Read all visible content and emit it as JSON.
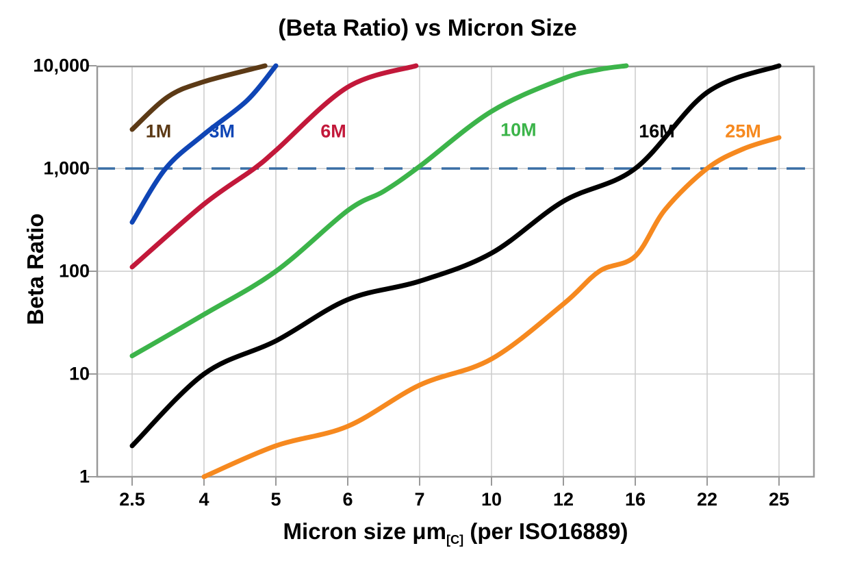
{
  "title": "(Beta Ratio) vs Micron Size",
  "y_axis": {
    "label": "Beta Ratio",
    "ticks": [
      "10,000",
      "1,000",
      "100",
      "10",
      "1"
    ]
  },
  "x_axis": {
    "label_main": "Micron size μm",
    "label_sub": "[C]",
    "label_suffix": " (per ISO16889)",
    "ticks": [
      "2.5",
      "4",
      "5",
      "6",
      "7",
      "10",
      "12",
      "16",
      "22",
      "25"
    ]
  },
  "colors": {
    "background": "#FFFFFF",
    "grid": "#CCCCCC",
    "axis_border": "#999999",
    "reference_dash": "#3A6EA5"
  },
  "chart_data": {
    "type": "line",
    "title": "(Beta Ratio) vs Micron Size",
    "xlabel": "Micron size μm[C] (per ISO16889)",
    "ylabel": "Beta Ratio",
    "x_scale": "categorical-equal-spacing",
    "x_ticks": [
      2.5,
      4,
      5,
      6,
      7,
      10,
      12,
      16,
      22,
      25
    ],
    "y_scale": "log",
    "ylim": [
      1,
      10000
    ],
    "y_ticks": [
      1,
      10,
      100,
      1000,
      10000
    ],
    "grid": true,
    "legend_position": "inline-labels",
    "reference_line": {
      "beta": 1000,
      "style": "dashed",
      "color": "#3A6EA5"
    },
    "series": [
      {
        "name": "1M",
        "color": "#5C3A16",
        "label_at": [
          3.05,
          2300
        ],
        "points": [
          [
            2.5,
            2400
          ],
          [
            3.25,
            5000
          ],
          [
            4,
            7000
          ],
          [
            4.85,
            10000
          ]
        ]
      },
      {
        "name": "3M",
        "color": "#0F45B5",
        "label_at": [
          4.25,
          2300
        ],
        "points": [
          [
            2.5,
            300
          ],
          [
            3.2,
            1000
          ],
          [
            4,
            2150
          ],
          [
            4.6,
            4600
          ],
          [
            5,
            10000
          ]
        ]
      },
      {
        "name": "6M",
        "color": "#C2183A",
        "label_at": [
          5.8,
          2300
        ],
        "points": [
          [
            2.5,
            110
          ],
          [
            4,
            450
          ],
          [
            4.7,
            1000
          ],
          [
            5,
            1500
          ],
          [
            6,
            6200
          ],
          [
            6.95,
            10000
          ]
        ]
      },
      {
        "name": "10M",
        "color": "#3CB44A",
        "label_at": [
          10.75,
          2350
        ],
        "points": [
          [
            2.5,
            15
          ],
          [
            4,
            38
          ],
          [
            5,
            100
          ],
          [
            6,
            390
          ],
          [
            6.5,
            600
          ],
          [
            7,
            1050
          ],
          [
            10,
            3600
          ],
          [
            12,
            7500
          ],
          [
            14,
            9200
          ],
          [
            15.5,
            10000
          ]
        ]
      },
      {
        "name": "16M",
        "color": "#000000",
        "label_at": [
          17.8,
          2300
        ],
        "points": [
          [
            2.5,
            2
          ],
          [
            4,
            10
          ],
          [
            5,
            21
          ],
          [
            6,
            53
          ],
          [
            7,
            80
          ],
          [
            10,
            150
          ],
          [
            12,
            480
          ],
          [
            16,
            1000
          ],
          [
            22,
            5500
          ],
          [
            25,
            10000
          ]
        ]
      },
      {
        "name": "25M",
        "color": "#F6891F",
        "label_at": [
          23.5,
          2300
        ],
        "points": [
          [
            4,
            1
          ],
          [
            5,
            2
          ],
          [
            6,
            3.1
          ],
          [
            7,
            7.8
          ],
          [
            10,
            14
          ],
          [
            12,
            48
          ],
          [
            14,
            100
          ],
          [
            16,
            140
          ],
          [
            18.5,
            400
          ],
          [
            22,
            1000
          ],
          [
            23.5,
            1550
          ],
          [
            25,
            2000
          ]
        ]
      }
    ]
  }
}
